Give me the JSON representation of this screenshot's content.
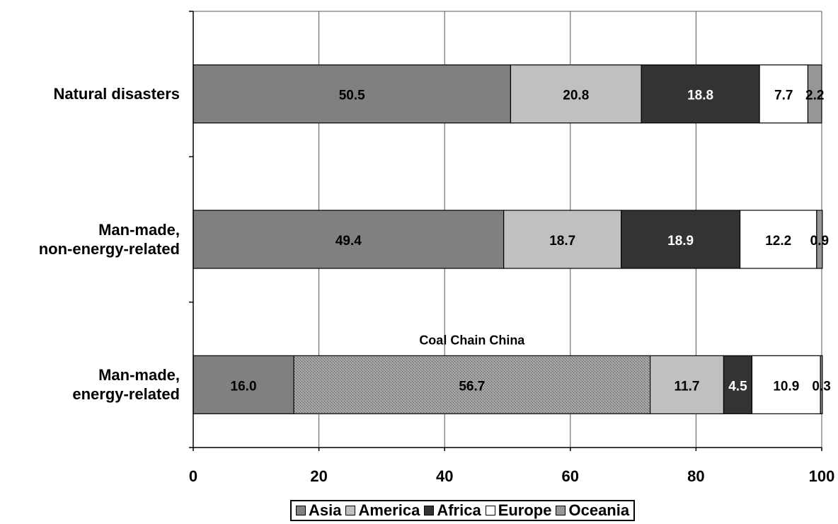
{
  "chart_data": {
    "type": "bar",
    "orientation": "horizontal",
    "stacked": true,
    "categories": [
      "Natural disasters",
      "Man-made,\nnon-energy-related",
      "Man-made,\nenergy-related"
    ],
    "series": [
      {
        "name": "Asia",
        "color": "#808080",
        "values": [
          50.5,
          49.4,
          16.0
        ]
      },
      {
        "name": "Coal Chain China",
        "color": "#a0a0a0",
        "pattern": "dotted",
        "values": [
          0,
          0,
          56.7
        ]
      },
      {
        "name": "America",
        "color": "#c0c0c0",
        "values": [
          20.8,
          18.7,
          11.7
        ]
      },
      {
        "name": "Africa",
        "color": "#333333",
        "values": [
          18.8,
          18.9,
          4.5
        ]
      },
      {
        "name": "Europe",
        "color": "#ffffff",
        "values": [
          7.7,
          12.2,
          10.9
        ]
      },
      {
        "name": "Oceania",
        "color": "#969696",
        "values": [
          2.2,
          0.9,
          0.3
        ]
      }
    ],
    "data_labels": [
      [
        "50.5",
        "",
        "20.8",
        "18.8",
        "7.7",
        "2.2"
      ],
      [
        "49.4",
        "",
        "18.7",
        "18.9",
        "12.2",
        "0.9"
      ],
      [
        "16.0",
        "56.7",
        "11.7",
        "4.5",
        "10.9",
        "0.3"
      ]
    ],
    "annotations": [
      "Coal Chain China"
    ],
    "x_ticks": [
      "0",
      "20",
      "40",
      "60",
      "80",
      "100"
    ],
    "xlim": [
      0,
      100
    ],
    "grid": "vertical",
    "legend": {
      "position": "bottom",
      "entries": [
        "Asia",
        "America",
        "Africa",
        "Europe",
        "Oceania"
      ]
    },
    "title": "",
    "xlabel": "",
    "ylabel": ""
  }
}
